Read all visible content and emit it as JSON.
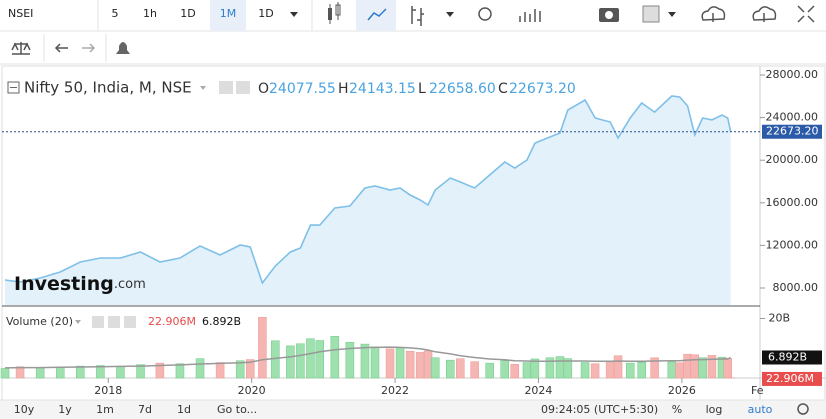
{
  "toolbar": {
    "symbol": "NSEI",
    "intervals": [
      "5",
      "1h",
      "1D",
      "1M",
      "1D"
    ]
  },
  "legend": {
    "ohlc": [
      {
        "label": "O",
        "value": "24077.55"
      },
      {
        "label": "H",
        "value": "24143.15"
      },
      {
        "label": "L",
        "value": "22658.60"
      },
      {
        "label": "C",
        "value": "22673.20"
      }
    ]
  },
  "logo": {
    "brand": "Investing",
    "suffix": ".com"
  },
  "chart_data": [
    {
      "type": "area",
      "title": "Nifty 50, India, M, NSE",
      "color": "#7ec0e8",
      "fill": "#e3f1fb",
      "x": [
        2016.56,
        2016.77,
        2017.05,
        2017.33,
        2017.61,
        2017.89,
        2018.17,
        2018.45,
        2018.72,
        2019.0,
        2019.28,
        2019.56,
        2019.84,
        2019.98,
        2020.15,
        2020.33,
        2020.54,
        2020.68,
        2020.82,
        2020.95,
        2021.16,
        2021.37,
        2021.58,
        2021.72,
        2021.93,
        2022.07,
        2022.21,
        2022.35,
        2022.46,
        2022.56,
        2022.77,
        2022.91,
        2023.11,
        2023.32,
        2023.53,
        2023.67,
        2023.84,
        2023.95,
        2024.16,
        2024.3,
        2024.41,
        2024.65,
        2024.79,
        2025.0,
        2025.11,
        2025.28,
        2025.44,
        2025.62,
        2025.86,
        2025.97,
        2026.08,
        2026.18,
        2026.29,
        2026.42,
        2026.56,
        2026.64,
        2026.68
      ],
      "values": [
        8750,
        8560,
        8940,
        9500,
        10440,
        10820,
        10820,
        11380,
        10440,
        10820,
        11940,
        11100,
        12040,
        11850,
        8470,
        10070,
        11380,
        11760,
        13910,
        13910,
        15510,
        15700,
        17390,
        17580,
        17200,
        17390,
        16730,
        16260,
        15790,
        17200,
        18330,
        17950,
        17390,
        18610,
        19830,
        19270,
        20020,
        21610,
        22180,
        22550,
        24710,
        25650,
        23960,
        23590,
        22080,
        23960,
        25370,
        24520,
        26030,
        25930,
        25090,
        22370,
        23960,
        23780,
        24240,
        23960,
        22673.2
      ],
      "last_label": "22673.20",
      "xlim": [
        2016.49,
        2027.09
      ],
      "xticks": [
        2018,
        2020,
        2022,
        2024,
        2026
      ],
      "ylim": [
        6404,
        28845
      ],
      "yticks": [
        {
          "value": 28000,
          "label": "28000.00"
        },
        {
          "value": 24000,
          "label": "24000.00"
        },
        {
          "value": 20000,
          "label": "20000.00"
        },
        {
          "value": 16000,
          "label": "16000.00"
        },
        {
          "value": 12000,
          "label": "12000.00"
        },
        {
          "value": 8000,
          "label": "8000.00"
        }
      ]
    },
    {
      "type": "bar",
      "title": "Volume (20)",
      "up_color": "#9ee0ae",
      "down_color": "#f5b5b2",
      "ma_color": "#999999",
      "x": [
        2016.56,
        2016.77,
        2017.05,
        2017.33,
        2017.61,
        2017.89,
        2018.17,
        2018.45,
        2018.72,
        2019.0,
        2019.28,
        2019.56,
        2019.84,
        2019.98,
        2020.15,
        2020.33,
        2020.54,
        2020.68,
        2020.82,
        2020.95,
        2021.16,
        2021.37,
        2021.58,
        2021.72,
        2021.93,
        2022.07,
        2022.21,
        2022.35,
        2022.46,
        2022.56,
        2022.77,
        2022.91,
        2023.11,
        2023.32,
        2023.53,
        2023.67,
        2023.84,
        2023.95,
        2024.16,
        2024.3,
        2024.41,
        2024.65,
        2024.79,
        2025.0,
        2025.11,
        2025.28,
        2025.44,
        2025.62,
        2025.86,
        2025.97,
        2026.08,
        2026.18,
        2026.29,
        2026.42,
        2026.56,
        2026.64,
        2026.68
      ],
      "values": [
        3.2,
        3.8,
        3.5,
        3.6,
        4.0,
        4.2,
        3.8,
        4.5,
        5.0,
        4.8,
        6.5,
        5.2,
        5.8,
        6.2,
        20.4,
        12.5,
        10.8,
        11.5,
        13.2,
        12.6,
        14.0,
        12.0,
        11.4,
        10.5,
        9.8,
        10.2,
        9.0,
        8.6,
        9.1,
        6.8,
        6.0,
        6.5,
        5.5,
        5.0,
        5.8,
        4.6,
        5.2,
        6.4,
        6.8,
        7.2,
        6.5,
        5.2,
        4.8,
        5.6,
        7.5,
        5.0,
        5.3,
        6.8,
        5.4,
        5.1,
        8.0,
        7.8,
        6.8,
        7.6,
        7.0,
        6.6,
        0.0229
      ],
      "ma_values": [
        3.4,
        3.5,
        3.5,
        3.6,
        3.7,
        3.8,
        3.9,
        4.0,
        4.2,
        4.4,
        4.7,
        4.9,
        5.1,
        5.3,
        6.1,
        6.6,
        7.1,
        7.6,
        8.2,
        8.8,
        9.5,
        9.9,
        10.2,
        10.3,
        10.4,
        10.3,
        10.1,
        9.8,
        9.4,
        8.8,
        8.1,
        7.5,
        6.9,
        6.4,
        6.1,
        5.8,
        5.7,
        5.6,
        5.6,
        5.7,
        5.7,
        5.7,
        5.6,
        5.6,
        5.7,
        5.6,
        5.6,
        5.7,
        5.8,
        5.8,
        6.0,
        6.1,
        6.2,
        6.3,
        6.4,
        6.4,
        6.892
      ],
      "last_label": "22.906M",
      "ma_last_label": "6.892B",
      "xlim": [
        2016.49,
        2027.09
      ],
      "ylim": [
        0,
        23.86
      ],
      "yticks": [
        {
          "value": 20,
          "label": "20B"
        }
      ]
    }
  ],
  "bottom_bar": {
    "ranges": [
      "10y",
      "1y",
      "1m",
      "7d",
      "1d",
      "Go to..."
    ],
    "time": "09:24:05 (UTC+5:30)",
    "options": [
      "%",
      "log",
      "auto"
    ],
    "axis_cut": "Fe"
  }
}
